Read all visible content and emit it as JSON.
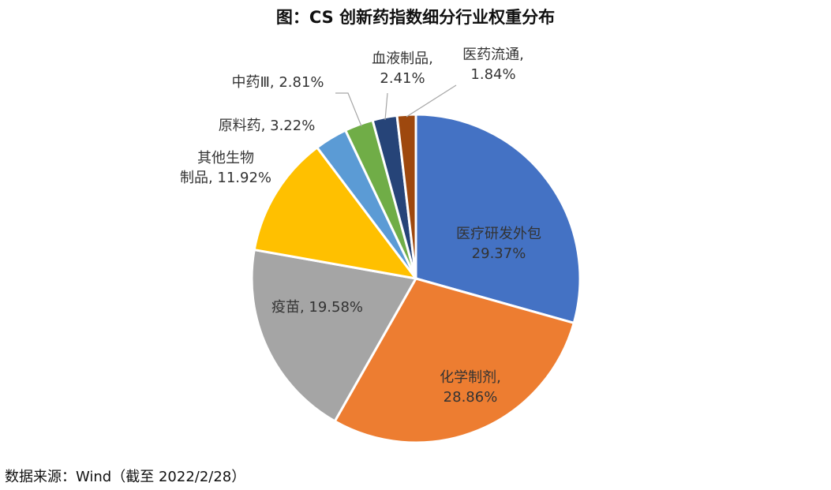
{
  "chart_data": {
    "type": "pie",
    "title": "图：CS 创新药指数细分行业权重分布",
    "slices": [
      {
        "name": "医疗研发外包",
        "value": 29.37,
        "label": "29.37%",
        "color": "#4472C4"
      },
      {
        "name": "化学制剂",
        "value": 28.86,
        "label": "28.86%",
        "color": "#ED7D31"
      },
      {
        "name": "疫苗",
        "value": 19.58,
        "label": "19.58%",
        "color": "#A5A5A5"
      },
      {
        "name": "其他生物制品",
        "value": 11.92,
        "label": "11.92%",
        "color": "#FFC000"
      },
      {
        "name": "原料药",
        "value": 3.22,
        "label": "3.22%",
        "color": "#5B9BD5"
      },
      {
        "name": "中药Ⅲ",
        "value": 2.81,
        "label": "2.81%",
        "color": "#70AD47"
      },
      {
        "name": "血液制品",
        "value": 2.41,
        "label": "2.41%",
        "color": "#264478"
      },
      {
        "name": "医药流通",
        "value": 1.84,
        "label": "1.84%",
        "color": "#9E480E"
      }
    ],
    "start_angle": "12 o'clock",
    "direction": "clockwise",
    "legend": "none"
  },
  "source": "数据来源：Wind（截至 2022/2/28）"
}
